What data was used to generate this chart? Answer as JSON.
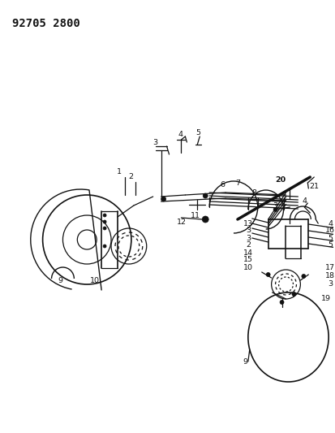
{
  "title": "92705 2800",
  "bg_color": "#ffffff",
  "line_color": "#111111",
  "title_fontsize": 10,
  "label_fontsize": 6.8,
  "bold_label_fontsize": 8.5,
  "figsize": [
    4.14,
    5.33
  ],
  "dpi": 100
}
